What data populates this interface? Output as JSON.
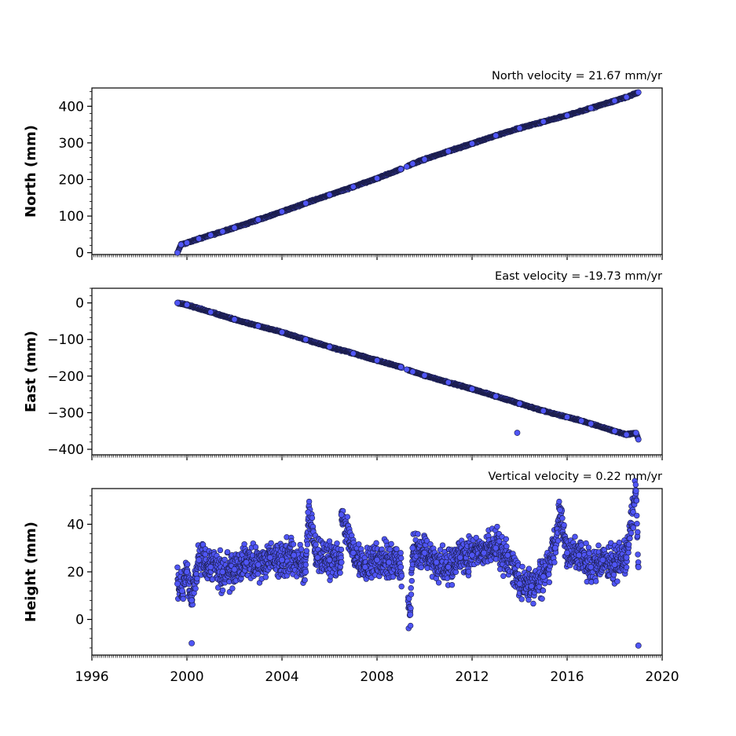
{
  "chart_data": [
    {
      "type": "scatter",
      "title": "North velocity = 21.67 mm/yr",
      "ylabel": "North (mm)",
      "xlim": [
        1996,
        2020
      ],
      "ylim": [
        -5,
        450
      ],
      "yticks": [
        0,
        100,
        200,
        300,
        400
      ],
      "grid": false,
      "series": [
        {
          "x": [
            1999.6,
            1999.75,
            2000.0,
            2000.5,
            2001.0,
            2001.5,
            2002.0,
            2003.0,
            2004.0,
            2005.0,
            2006.0,
            2007.0,
            2008.0,
            2009.0,
            2009.25,
            2009.5,
            2010.0,
            2011.0,
            2012.0,
            2013.0,
            2014.0,
            2015.0,
            2016.0,
            2017.0,
            2018.0,
            2018.5,
            2019.0
          ],
          "y": [
            0,
            22,
            27,
            38,
            48,
            58,
            68,
            90,
            112,
            135,
            158,
            180,
            203,
            228,
            235,
            243,
            255,
            277,
            298,
            320,
            340,
            358,
            375,
            395,
            415,
            425,
            438
          ]
        }
      ]
    },
    {
      "type": "scatter",
      "title": "East velocity = -19.73 mm/yr",
      "ylabel": "East (mm)",
      "xlim": [
        1996,
        2020
      ],
      "ylim": [
        -415,
        40
      ],
      "yticks": [
        0,
        -100,
        -200,
        -300,
        -400
      ],
      "grid": false,
      "series": [
        {
          "x": [
            1999.6,
            2000.0,
            2001.0,
            2002.0,
            2003.0,
            2004.0,
            2005.0,
            2006.0,
            2007.0,
            2008.0,
            2009.0,
            2009.25,
            2009.5,
            2010.0,
            2011.0,
            2012.0,
            2013.0,
            2014.0,
            2015.0,
            2016.0,
            2017.0,
            2018.0,
            2018.5,
            2019.0,
            2013.9,
            2016.6,
            2018.9
          ],
          "y": [
            0,
            -5,
            -25,
            -45,
            -63,
            -80,
            -100,
            -120,
            -138,
            -157,
            -175,
            -182,
            -188,
            -198,
            -217,
            -235,
            -255,
            -275,
            -295,
            -312,
            -330,
            -350,
            -360,
            -373,
            -355,
            -322,
            -355
          ]
        }
      ]
    },
    {
      "type": "scatter",
      "title": "Vertical velocity = 0.22 mm/yr",
      "ylabel": "Height (mm)",
      "xlim": [
        1996,
        2020
      ],
      "ylim": [
        -15,
        55
      ],
      "yticks": [
        0,
        20,
        40
      ],
      "xticks": [
        1996,
        2000,
        2004,
        2008,
        2012,
        2016,
        2020
      ],
      "grid": false,
      "series": [
        {
          "x": [
            1999.6,
            1999.8,
            2000.0,
            2000.2,
            2000.5,
            2001.0,
            2001.5,
            2002.0,
            2002.5,
            2003.0,
            2003.5,
            2004.0,
            2004.5,
            2005.0,
            2005.5,
            2006.0,
            2006.5,
            2007.0,
            2007.5,
            2008.0,
            2008.5,
            2009.0,
            2009.5,
            2010.0,
            2010.5,
            2011.0,
            2011.5,
            2012.0,
            2012.5,
            2013.0,
            2013.5,
            2014.0,
            2014.5,
            2015.0,
            2015.5,
            2016.0,
            2016.5,
            2017.0,
            2017.5,
            2018.0,
            2018.5,
            2019.0,
            2000.2,
            2005.1,
            2006.5,
            2009.4,
            2015.7,
            2018.9,
            2019.0
          ],
          "y": [
            15,
            12,
            20,
            8,
            25,
            22,
            20,
            21,
            24,
            23,
            26,
            25,
            27,
            20,
            26,
            25,
            24,
            28,
            22,
            25,
            24,
            22,
            30,
            28,
            24,
            22,
            26,
            27,
            28,
            30,
            27,
            15,
            14,
            18,
            30,
            28,
            27,
            22,
            25,
            23,
            26,
            22,
            -10,
            45,
            44,
            2,
            46,
            54,
            -11
          ]
        }
      ]
    }
  ]
}
